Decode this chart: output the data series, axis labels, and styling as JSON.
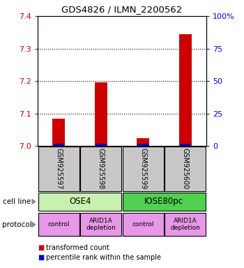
{
  "title": "GDS4826 / ILMN_2200562",
  "samples": [
    "GSM925597",
    "GSM925598",
    "GSM925599",
    "GSM925600"
  ],
  "red_values": [
    7.085,
    7.195,
    7.025,
    7.345
  ],
  "blue_values": [
    7.005,
    7.008,
    7.006,
    7.01
  ],
  "red_base": 7.0,
  "ylim": [
    7.0,
    7.4
  ],
  "yticks": [
    7.0,
    7.1,
    7.2,
    7.3,
    7.4
  ],
  "y2ticks": [
    0,
    25,
    50,
    75,
    100
  ],
  "y2labels": [
    "0",
    "25",
    "50",
    "75",
    "100%"
  ],
  "cell_line_labels": [
    "OSE4",
    "IOSE80pc"
  ],
  "cell_line_spans": [
    [
      0,
      1
    ],
    [
      2,
      3
    ]
  ],
  "cell_line_colors": [
    "#c8f0b0",
    "#50d050"
  ],
  "protocol_labels": [
    "control",
    "ARID1A\ndepletion",
    "control",
    "ARID1A\ndepletion"
  ],
  "protocol_color": "#e898e8",
  "sample_box_color": "#c8c8c8",
  "bar_color_red": "#cc0000",
  "bar_color_blue": "#0000cc",
  "left_label_color": "#cc0000",
  "right_label_color": "#0000cc",
  "legend_red": "transformed count",
  "legend_blue": "percentile rank within the sample",
  "cell_line_text": "cell line",
  "protocol_text": "protocol",
  "bar_width": 0.3,
  "blue_bar_height": 0.008
}
